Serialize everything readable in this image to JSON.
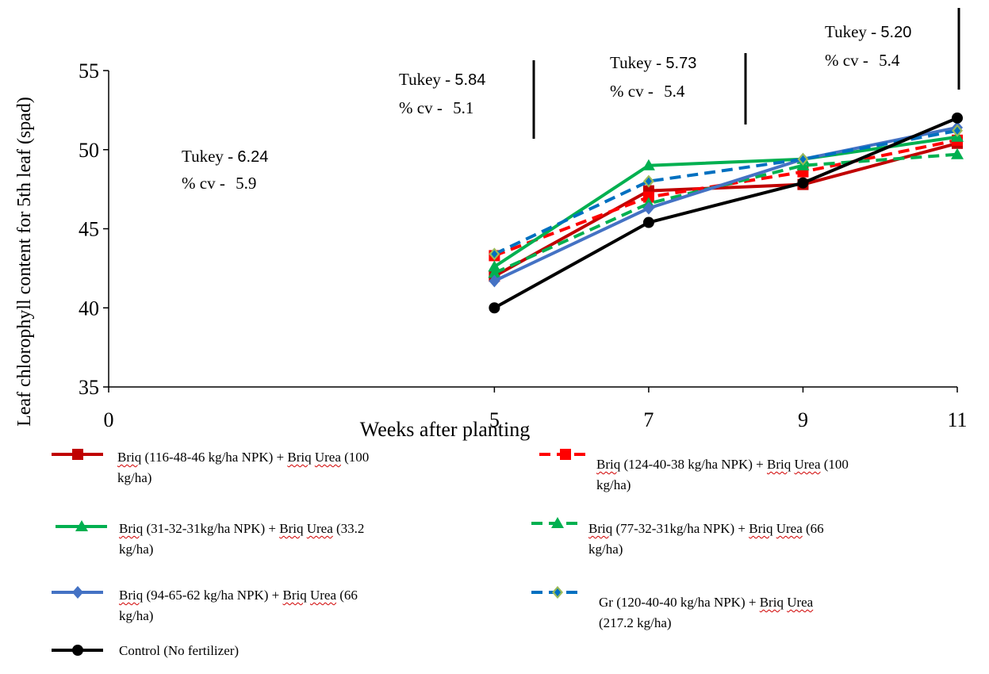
{
  "colors": {
    "dark_red": "#c00000",
    "red": "#ff0000",
    "green": "#00b050",
    "blue": "#0070c0",
    "steel_blue": "#4472c4",
    "black": "#000000",
    "olive": "#9bbb59"
  },
  "chart_data": {
    "type": "line",
    "xlabel": "Weeks after planting",
    "ylabel": "Leaf chlorophyll content for 5th leaf (spad)",
    "xlim": [
      0,
      11
    ],
    "ylim": [
      35,
      55
    ],
    "x_ticks": [
      "0",
      "5",
      "7",
      "9",
      "11"
    ],
    "y_ticks": [
      "35",
      "40",
      "45",
      "50",
      "55"
    ],
    "grid": false,
    "legend_position": "bottom",
    "x": [
      5,
      7,
      9,
      11
    ],
    "series": [
      {
        "name": "Briq (116-48-46 kg/ha NPK) + Briq Urea (100 kg/ha)",
        "values": [
          42.0,
          47.4,
          47.8,
          50.4
        ],
        "color": "#c00000",
        "dash": "solid",
        "marker": "square"
      },
      {
        "name": "Briq (124-40-38 kg/ha NPK) + Briq Urea (100 kg/ha)",
        "values": [
          43.3,
          47.0,
          48.6,
          50.6
        ],
        "color": "#ff0000",
        "dash": "dashed",
        "marker": "square"
      },
      {
        "name": "Briq (31-32-31kg/ha NPK) + Briq Urea (33.2 kg/ha)",
        "values": [
          42.6,
          49.0,
          49.4,
          50.8
        ],
        "color": "#00b050",
        "dash": "solid",
        "marker": "triangle"
      },
      {
        "name": "Briq (77-32-31kg/ha NPK) + Briq Urea (66 kg/ha)",
        "values": [
          42.2,
          46.6,
          49.0,
          49.7
        ],
        "color": "#00b050",
        "dash": "dashed",
        "marker": "triangle"
      },
      {
        "name": "Briq (94-65-62 kg/ha NPK) + Briq Urea (66 kg/ha)",
        "values": [
          41.7,
          46.3,
          49.4,
          51.4
        ],
        "color": "#4472c4",
        "dash": "solid",
        "marker": "diamond"
      },
      {
        "name": "Gr (120-40-40 kg/ha NPK) + Briq Urea (217.2 kg/ha)",
        "values": [
          43.4,
          48.0,
          49.4,
          51.2
        ],
        "color": "#0070c0",
        "dash": "dashed",
        "marker": "diamond"
      },
      {
        "name": "Control (No fertilizer)",
        "values": [
          40.0,
          45.4,
          47.9,
          52.0
        ],
        "color": "#000000",
        "dash": "solid",
        "marker": "circle"
      }
    ],
    "annotations": [
      {
        "tukey_label": "Tukey - ",
        "tukey_value": "6.24",
        "cv_label": "% cv - ",
        "cv_value": "5.9"
      },
      {
        "tukey_label": "Tukey - ",
        "tukey_value": "5.84",
        "cv_label": "% cv - ",
        "cv_value": "5.1"
      },
      {
        "tukey_label": "Tukey - ",
        "tukey_value": "5.73",
        "cv_label": "% cv - ",
        "cv_value": "5.4"
      },
      {
        "tukey_label": "Tukey - ",
        "tukey_value": "5.20",
        "cv_label": "% cv - ",
        "cv_value": "5.4"
      }
    ]
  },
  "legend": [
    {
      "prefix": "Briq",
      "middle": " (116-48-46 kg/ha NPK) + ",
      "word": "Briq Urea",
      "suffix": " (100",
      "line2": "kg/ha)"
    },
    {
      "prefix": "Briq",
      "middle": " (124-40-38 kg/ha NPK) + ",
      "word": "Briq Urea",
      "suffix": " (100",
      "line2": "kg/ha)"
    },
    {
      "prefix": "Briq",
      "middle": " (31-32-31kg/ha NPK) + ",
      "word": "Briq Urea",
      "suffix": " (33.2",
      "line2": "kg/ha)"
    },
    {
      "prefix": "Briq",
      "middle": " (77-32-31kg/ha NPK) + ",
      "word": "Briq Urea",
      "suffix": " (66",
      "line2": "kg/ha)"
    },
    {
      "prefix": "Briq",
      "middle": " (94-65-62 kg/ha NPK) + ",
      "word": "Briq Urea",
      "suffix": " (66",
      "line2": "kg/ha)"
    },
    {
      "prefix": "Gr",
      "middle": " (120-40-40 kg/ha NPK) + ",
      "word": "Briq Urea",
      "suffix": "",
      "line2": "(217.2   kg/ha)"
    },
    {
      "prefix": "Control (No fertilizer)",
      "middle": "",
      "word": "",
      "suffix": "",
      "line2": ""
    }
  ]
}
